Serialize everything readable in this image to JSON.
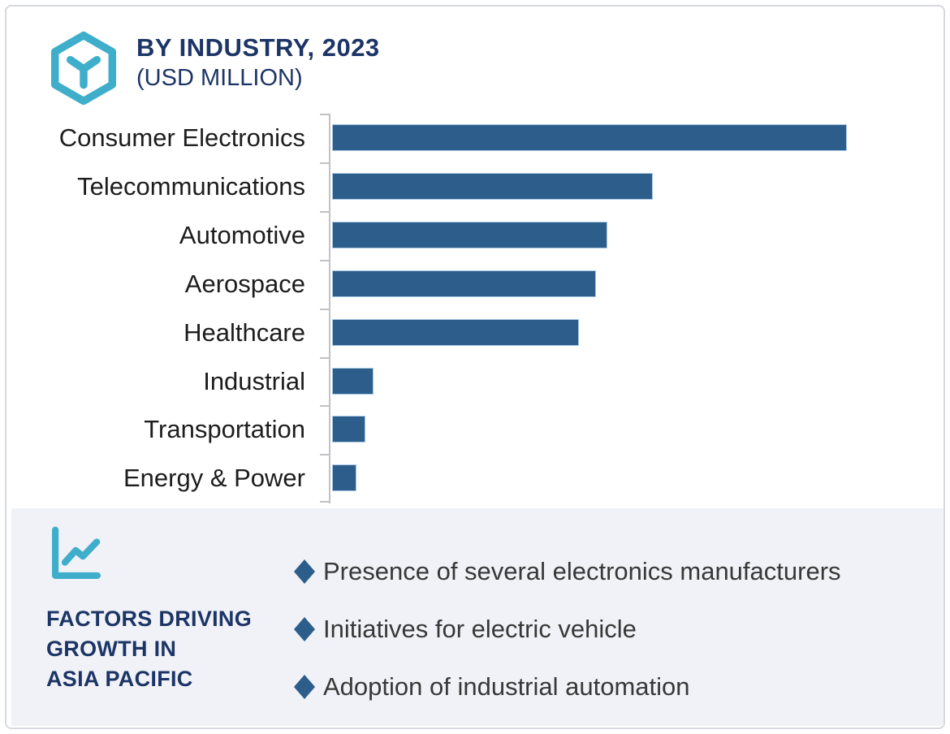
{
  "header": {
    "title": "BY INDUSTRY, 2023",
    "subtitle": "(USD MILLION)"
  },
  "chart_data": {
    "type": "bar",
    "orientation": "horizontal",
    "title": "BY INDUSTRY, 2023",
    "subtitle": "(USD MILLION)",
    "unit": "USD Million",
    "categories": [
      "Consumer Electronics",
      "Telecommunications",
      "Automotive",
      "Aerospace",
      "Healthcare",
      "Industrial",
      "Transportation",
      "Energy & Power"
    ],
    "values_relative_to_max_pct": [
      100,
      62.3,
      53.5,
      51.3,
      48.0,
      8.1,
      6.5,
      4.8
    ],
    "value_axis_labeled": false,
    "grid": false,
    "legend": false,
    "bar_color": "#2d5e8b",
    "bar_border_color": "#a9c8e4",
    "axis_color": "#c2c2c6"
  },
  "factors_panel": {
    "heading_lines": [
      "FACTORS DRIVING",
      "GROWTH IN",
      "ASIA PACIFIC"
    ],
    "bullets": [
      "Presence of several electronics manufacturers",
      "Initiatives for electric vehicle",
      "Adoption of industrial automation"
    ]
  },
  "icons": {
    "header_icon": "hexagon-y-icon",
    "panel_icon": "trend-line-chart-icon",
    "bullet_icon": "diamond-bullet"
  },
  "colors": {
    "accent_teal": "#3eaecb",
    "navy": "#1c3566",
    "bar_blue": "#2d5e8b",
    "panel_background": "#f0f2f7",
    "label_text": "#1d1d1d",
    "bullet_text": "#383838",
    "frame_border": "#d7d9de"
  }
}
